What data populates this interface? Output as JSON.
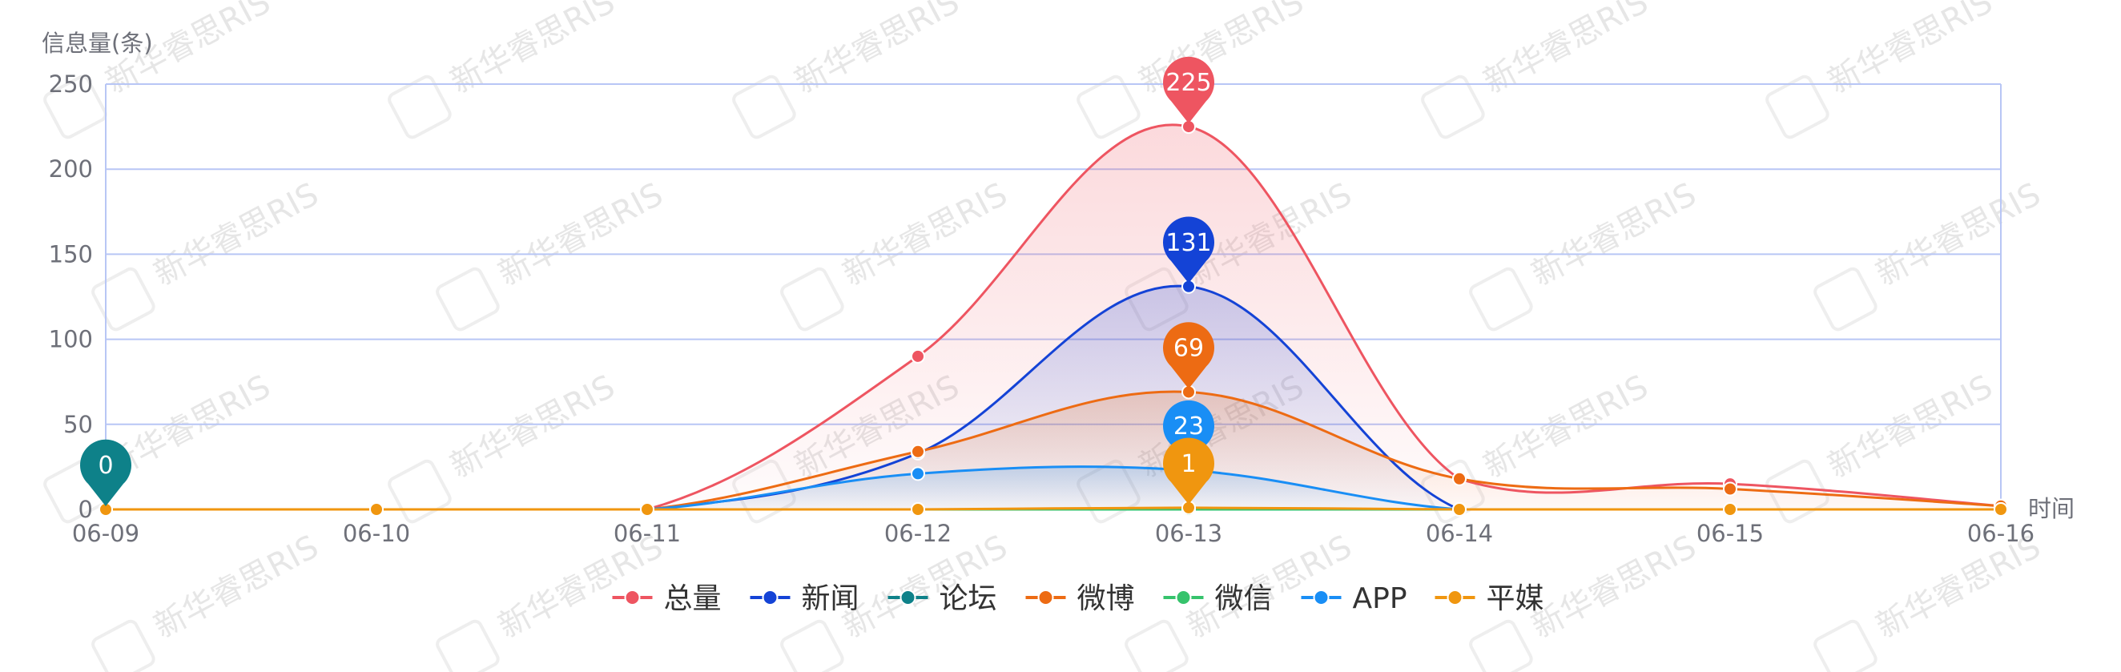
{
  "watermark": "新华睿思RIS",
  "chart_data": {
    "type": "line",
    "ylabel": "信息量(条)",
    "xlabel": "时间",
    "categories": [
      "06-09",
      "06-10",
      "06-11",
      "06-12",
      "06-13",
      "06-14",
      "06-15",
      "06-16"
    ],
    "ylim": [
      0,
      250
    ],
    "yticks": [
      0,
      50,
      100,
      150,
      200,
      250
    ],
    "grid": true,
    "legend_position": "bottom",
    "series": [
      {
        "name": "总量",
        "color": "#ee5561",
        "values": [
          0,
          0,
          0,
          90,
          225,
          18,
          15,
          2
        ],
        "fill": true,
        "max_label": "225"
      },
      {
        "name": "新闻",
        "color": "#1443d6",
        "values": [
          0,
          0,
          0,
          33,
          131,
          0,
          0,
          0
        ],
        "fill": true,
        "max_label": "131"
      },
      {
        "name": "论坛",
        "color": "#0e8189",
        "values": [
          0,
          0,
          0,
          0,
          0,
          0,
          0,
          0
        ],
        "fill": false,
        "max_label": "0"
      },
      {
        "name": "微博",
        "color": "#ed6b13",
        "values": [
          0,
          0,
          0,
          34,
          69,
          18,
          12,
          2
        ],
        "fill": true,
        "max_label": "69"
      },
      {
        "name": "微信",
        "color": "#36c36c",
        "values": [
          0,
          0,
          0,
          0,
          0,
          0,
          0,
          0
        ],
        "fill": false,
        "max_label": ""
      },
      {
        "name": "APP",
        "color": "#198ef5",
        "values": [
          0,
          0,
          0,
          21,
          23,
          0,
          0,
          0
        ],
        "fill": true,
        "max_label": "23"
      },
      {
        "name": "平媒",
        "color": "#f0960f",
        "values": [
          0,
          0,
          0,
          0,
          1,
          0,
          0,
          0
        ],
        "fill": false,
        "max_label": "1"
      }
    ]
  }
}
